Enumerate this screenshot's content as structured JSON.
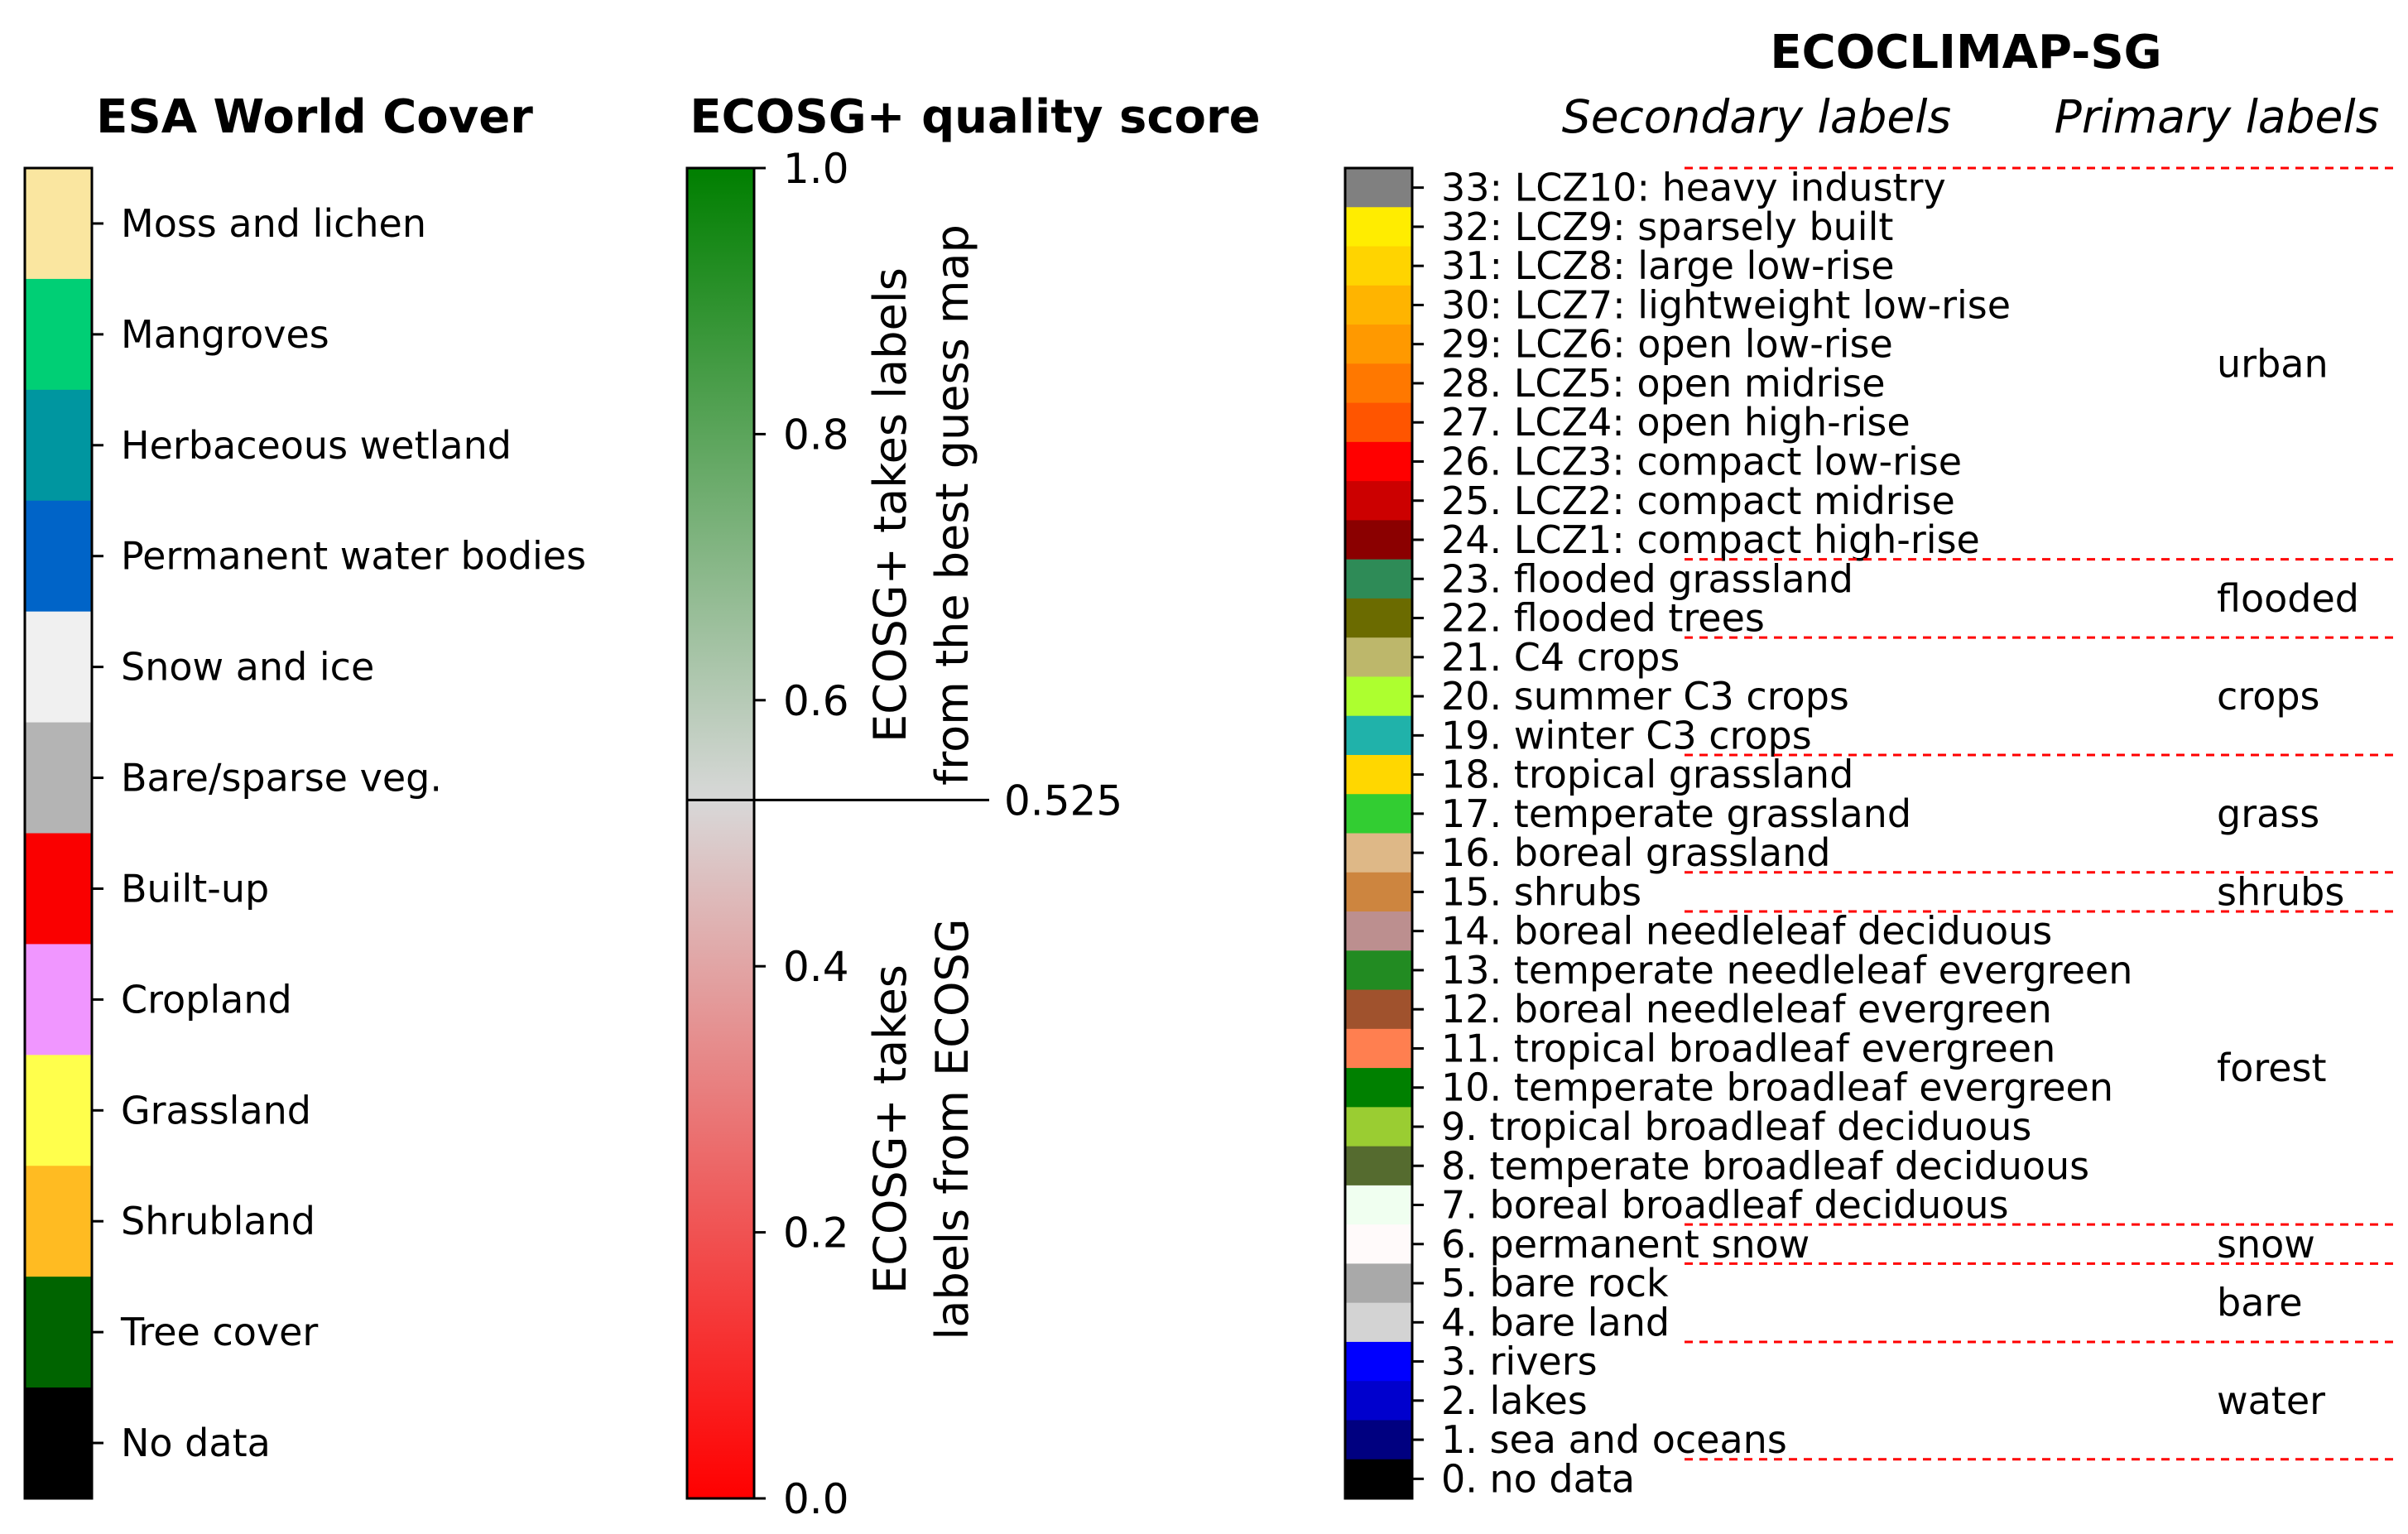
{
  "esa": {
    "title": "ESA World Cover",
    "classes": [
      {
        "label": "Moss and lichen",
        "color": "#fae6a0"
      },
      {
        "label": "Mangroves",
        "color": "#00cf75"
      },
      {
        "label": "Herbaceous wetland",
        "color": "#0096a0"
      },
      {
        "label": "Permanent water bodies",
        "color": "#0064c8"
      },
      {
        "label": "Snow and ice",
        "color": "#f0f0f0"
      },
      {
        "label": "Bare/sparse veg.",
        "color": "#b4b4b4"
      },
      {
        "label": "Built-up",
        "color": "#fa0000"
      },
      {
        "label": "Cropland",
        "color": "#f096ff"
      },
      {
        "label": "Grassland",
        "color": "#ffff4c"
      },
      {
        "label": "Shrubland",
        "color": "#ffbb22"
      },
      {
        "label": "Tree cover",
        "color": "#006400"
      },
      {
        "label": "No data",
        "color": "#000000"
      }
    ]
  },
  "quality": {
    "title": "ECOSG+ quality score",
    "ticks": [
      "1.0",
      "0.8",
      "0.6",
      "0.4",
      "0.2",
      "0.0"
    ],
    "tick_values": [
      1.0,
      0.8,
      0.6,
      0.4,
      0.2,
      0.0
    ],
    "threshold": 0.525,
    "threshold_label": "0.525",
    "upper_text_line1": "ECOSG+ takes labels",
    "upper_text_line2": "from the best guess map",
    "lower_text_line1": "ECOSG+ takes",
    "lower_text_line2": "labels from ECOSG",
    "colors": {
      "top": "#007f00",
      "mid": "#d8d8d8",
      "bottom": "#ff0000"
    }
  },
  "ecosg": {
    "title": "ECOCLIMAP-SG",
    "secondary_header": "Secondary labels",
    "primary_header": "Primary labels",
    "classes": [
      {
        "label": "33: LCZ10: heavy industry",
        "color": "#808080"
      },
      {
        "label": "32: LCZ9: sparsely built",
        "color": "#ffed00"
      },
      {
        "label": "31: LCZ8: large low-rise",
        "color": "#ffd400"
      },
      {
        "label": "30: LCZ7: lightweight low-rise",
        "color": "#ffb400"
      },
      {
        "label": "29: LCZ6: open low-rise",
        "color": "#ff9900"
      },
      {
        "label": "28. LCZ5: open midrise",
        "color": "#ff7800"
      },
      {
        "label": "27. LCZ4: open high-rise",
        "color": "#ff5500"
      },
      {
        "label": "26. LCZ3: compact low-rise",
        "color": "#ff0000"
      },
      {
        "label": "25. LCZ2: compact midrise",
        "color": "#cc0000"
      },
      {
        "label": "24. LCZ1: compact high-rise",
        "color": "#8b0000"
      },
      {
        "label": "23. flooded grassland",
        "color": "#2e8b57"
      },
      {
        "label": "22. flooded trees",
        "color": "#6b6b00"
      },
      {
        "label": "21. C4 crops",
        "color": "#bdb76b"
      },
      {
        "label": "20. summer C3 crops",
        "color": "#adff2f"
      },
      {
        "label": "19. winter C3 crops",
        "color": "#20b2aa"
      },
      {
        "label": "18. tropical grassland",
        "color": "#ffd700"
      },
      {
        "label": "17. temperate grassland",
        "color": "#32cd32"
      },
      {
        "label": "16. boreal grassland",
        "color": "#deb887"
      },
      {
        "label": "15. shrubs",
        "color": "#cd853f"
      },
      {
        "label": "14. boreal needleleaf deciduous",
        "color": "#bc8f8f"
      },
      {
        "label": "13. temperate needleleaf evergreen",
        "color": "#228b22"
      },
      {
        "label": "12. boreal needleleaf evergreen",
        "color": "#a0522d"
      },
      {
        "label": "11. tropical broadleaf evergreen",
        "color": "#ff7f50"
      },
      {
        "label": "10. temperate broadleaf evergreen",
        "color": "#008000"
      },
      {
        "label": "9. tropical broadleaf deciduous",
        "color": "#9acd32"
      },
      {
        "label": "8. temperate broadleaf deciduous",
        "color": "#556b2f"
      },
      {
        "label": "7. boreal broadleaf deciduous",
        "color": "#f0fff0"
      },
      {
        "label": "6. permanent snow",
        "color": "#fffafa"
      },
      {
        "label": "5. bare rock",
        "color": "#a9a9a9"
      },
      {
        "label": "4. bare land",
        "color": "#d3d3d3"
      },
      {
        "label": "3. rivers",
        "color": "#0000ff"
      },
      {
        "label": "2. lakes",
        "color": "#0000cd"
      },
      {
        "label": "1. sea and oceans",
        "color": "#000080"
      },
      {
        "label": "0. no data",
        "color": "#000000"
      }
    ],
    "primary_groups": [
      {
        "label": "urban",
        "from_index": 0,
        "to_index": 9
      },
      {
        "label": "flooded",
        "from_index": 10,
        "to_index": 11
      },
      {
        "label": "crops",
        "from_index": 12,
        "to_index": 14
      },
      {
        "label": "grass",
        "from_index": 15,
        "to_index": 17
      },
      {
        "label": "shrubs",
        "from_index": 18,
        "to_index": 18
      },
      {
        "label": "forest",
        "from_index": 19,
        "to_index": 26
      },
      {
        "label": "snow",
        "from_index": 27,
        "to_index": 27
      },
      {
        "label": "bare",
        "from_index": 28,
        "to_index": 29
      },
      {
        "label": "water",
        "from_index": 30,
        "to_index": 32
      }
    ],
    "separator_color": "#ff0000"
  }
}
